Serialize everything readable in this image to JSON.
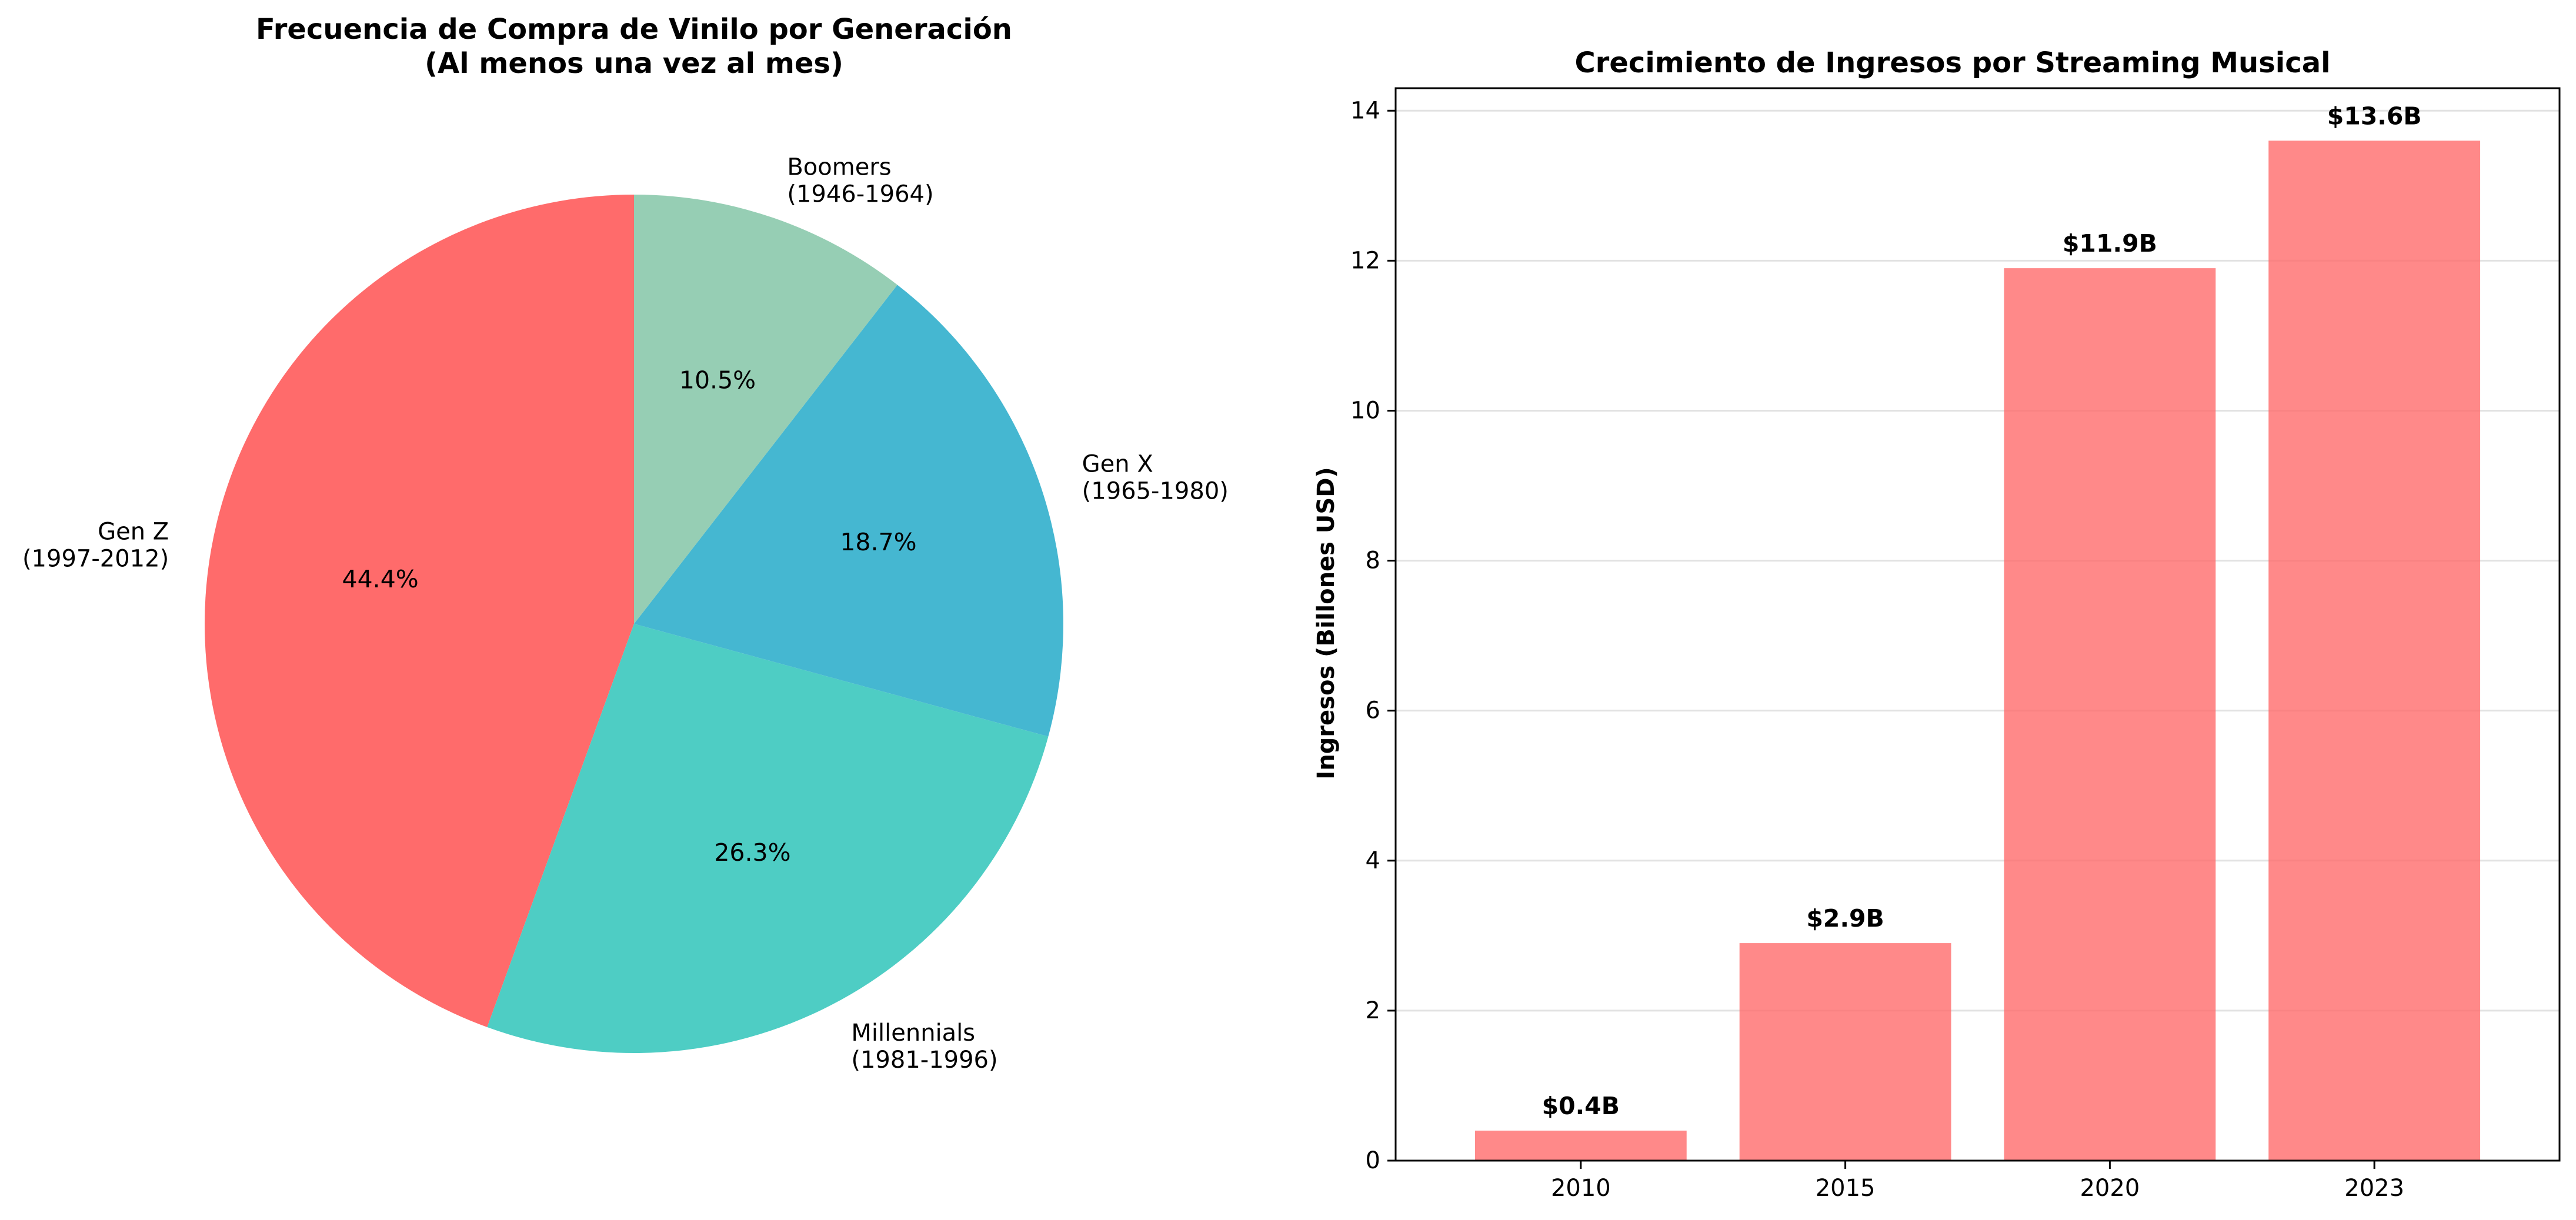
{
  "chart_data": [
    {
      "type": "pie",
      "title": "Frecuencia de Compra de Vinilo por Generación",
      "subtitle": "(Al menos una vez al mes)",
      "slices": [
        {
          "name": "Gen Z",
          "range": "(1997-2012)",
          "value": 44.4,
          "label": "44.4%",
          "color": "#ff6b6b"
        },
        {
          "name": "Millennials",
          "range": "(1981-1996)",
          "value": 26.3,
          "label": "26.3%",
          "color": "#4ecdc4"
        },
        {
          "name": "Gen X",
          "range": "(1965-1980)",
          "value": 18.7,
          "label": "18.7%",
          "color": "#45b7d1"
        },
        {
          "name": "Boomers",
          "range": "(1946-1964)",
          "value": 10.5,
          "label": "10.5%",
          "color": "#96ceb4"
        }
      ],
      "startangle_deg": 90,
      "direction": "counterclockwise"
    },
    {
      "type": "bar",
      "title": "Crecimiento de Ingresos por Streaming Musical",
      "xlabel": "",
      "ylabel": "Ingresos (Billones USD)",
      "categories": [
        "2010",
        "2015",
        "2020",
        "2023"
      ],
      "values": [
        0.4,
        2.9,
        11.9,
        13.6
      ],
      "value_labels": [
        "$0.4B",
        "$2.9B",
        "$11.9B",
        "$13.6B"
      ],
      "ylim": [
        0,
        14.3
      ],
      "yticks": [
        0,
        2,
        4,
        6,
        8,
        10,
        12,
        14
      ],
      "grid": "horizontal",
      "bar_color": "#ff6b6b",
      "bar_opacity": 0.8
    }
  ]
}
